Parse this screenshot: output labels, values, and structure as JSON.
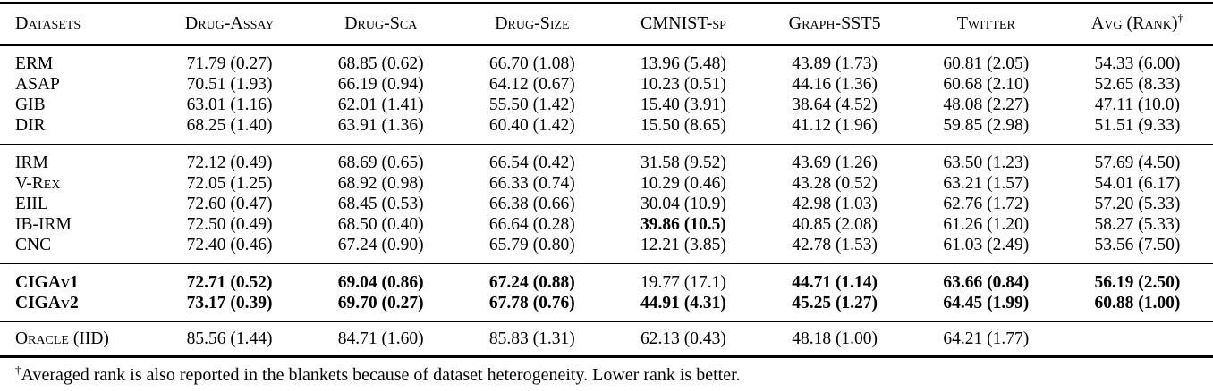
{
  "header": {
    "columns": [
      "Datasets",
      "Drug-Assay",
      "Drug-Sca",
      "Drug-Size",
      "CMNIST-sp",
      "Graph-SST5",
      "Twitter",
      "Avg (Rank)"
    ],
    "dagger": "†"
  },
  "groups": [
    {
      "rows": [
        {
          "label": "ERM",
          "bold": false,
          "cells": [
            {
              "text": "71.79 (0.27)",
              "bold": false
            },
            {
              "text": "68.85 (0.62)",
              "bold": false
            },
            {
              "text": "66.70 (1.08)",
              "bold": false
            },
            {
              "text": "13.96 (5.48)",
              "bold": false
            },
            {
              "text": "43.89 (1.73)",
              "bold": false
            },
            {
              "text": "60.81 (2.05)",
              "bold": false
            },
            {
              "text": "54.33 (6.00)",
              "bold": false
            }
          ]
        },
        {
          "label": "ASAP",
          "bold": false,
          "cells": [
            {
              "text": "70.51 (1.93)",
              "bold": false
            },
            {
              "text": "66.19 (0.94)",
              "bold": false
            },
            {
              "text": "64.12 (0.67)",
              "bold": false
            },
            {
              "text": "10.23 (0.51)",
              "bold": false
            },
            {
              "text": "44.16 (1.36)",
              "bold": false
            },
            {
              "text": "60.68 (2.10)",
              "bold": false
            },
            {
              "text": "52.65 (8.33)",
              "bold": false
            }
          ]
        },
        {
          "label": "GIB",
          "bold": false,
          "cells": [
            {
              "text": "63.01 (1.16)",
              "bold": false
            },
            {
              "text": "62.01 (1.41)",
              "bold": false
            },
            {
              "text": "55.50 (1.42)",
              "bold": false
            },
            {
              "text": "15.40 (3.91)",
              "bold": false
            },
            {
              "text": "38.64 (4.52)",
              "bold": false
            },
            {
              "text": "48.08 (2.27)",
              "bold": false
            },
            {
              "text": "47.11 (10.0)",
              "bold": false
            }
          ]
        },
        {
          "label": "DIR",
          "bold": false,
          "cells": [
            {
              "text": "68.25 (1.40)",
              "bold": false
            },
            {
              "text": "63.91 (1.36)",
              "bold": false
            },
            {
              "text": "60.40 (1.42)",
              "bold": false
            },
            {
              "text": "15.50 (8.65)",
              "bold": false
            },
            {
              "text": "41.12 (1.96)",
              "bold": false
            },
            {
              "text": "59.85 (2.98)",
              "bold": false
            },
            {
              "text": "51.51 (9.33)",
              "bold": false
            }
          ]
        }
      ]
    },
    {
      "rows": [
        {
          "label": "IRM",
          "bold": false,
          "cells": [
            {
              "text": "72.12 (0.49)",
              "bold": false
            },
            {
              "text": "68.69 (0.65)",
              "bold": false
            },
            {
              "text": "66.54 (0.42)",
              "bold": false
            },
            {
              "text": "31.58 (9.52)",
              "bold": false
            },
            {
              "text": "43.69 (1.26)",
              "bold": false
            },
            {
              "text": "63.50 (1.23)",
              "bold": false
            },
            {
              "text": "57.69 (4.50)",
              "bold": false
            }
          ]
        },
        {
          "label": "V-Rex",
          "bold": false,
          "cells": [
            {
              "text": "72.05 (1.25)",
              "bold": false
            },
            {
              "text": "68.92 (0.98)",
              "bold": false
            },
            {
              "text": "66.33 (0.74)",
              "bold": false
            },
            {
              "text": "10.29 (0.46)",
              "bold": false
            },
            {
              "text": "43.28 (0.52)",
              "bold": false
            },
            {
              "text": "63.21 (1.57)",
              "bold": false
            },
            {
              "text": "54.01 (6.17)",
              "bold": false
            }
          ]
        },
        {
          "label": "EIIL",
          "bold": false,
          "cells": [
            {
              "text": "72.60 (0.47)",
              "bold": false
            },
            {
              "text": "68.45 (0.53)",
              "bold": false
            },
            {
              "text": "66.38 (0.66)",
              "bold": false
            },
            {
              "text": "30.04 (10.9)",
              "bold": false
            },
            {
              "text": "42.98 (1.03)",
              "bold": false
            },
            {
              "text": "62.76 (1.72)",
              "bold": false
            },
            {
              "text": "57.20 (5.33)",
              "bold": false
            }
          ]
        },
        {
          "label": "IB-IRM",
          "bold": false,
          "cells": [
            {
              "text": "72.50 (0.49)",
              "bold": false
            },
            {
              "text": "68.50 (0.40)",
              "bold": false
            },
            {
              "text": "66.64 (0.28)",
              "bold": false
            },
            {
              "text": "39.86 (10.5)",
              "bold": true
            },
            {
              "text": "40.85 (2.08)",
              "bold": false
            },
            {
              "text": "61.26 (1.20)",
              "bold": false
            },
            {
              "text": "58.27 (5.33)",
              "bold": false
            }
          ]
        },
        {
          "label": "CNC",
          "bold": false,
          "cells": [
            {
              "text": "72.40 (0.46)",
              "bold": false
            },
            {
              "text": "67.24 (0.90)",
              "bold": false
            },
            {
              "text": "65.79 (0.80)",
              "bold": false
            },
            {
              "text": "12.21 (3.85)",
              "bold": false
            },
            {
              "text": "42.78 (1.53)",
              "bold": false
            },
            {
              "text": "61.03 (2.49)",
              "bold": false
            },
            {
              "text": "53.56 (7.50)",
              "bold": false
            }
          ]
        }
      ]
    },
    {
      "rows": [
        {
          "label": "CIGAv1",
          "bold": true,
          "cells": [
            {
              "text": "72.71 (0.52)",
              "bold": true
            },
            {
              "text": "69.04 (0.86)",
              "bold": true
            },
            {
              "text": "67.24 (0.88)",
              "bold": true
            },
            {
              "text": "19.77 (17.1)",
              "bold": false
            },
            {
              "text": "44.71 (1.14)",
              "bold": true
            },
            {
              "text": "63.66 (0.84)",
              "bold": true
            },
            {
              "text": "56.19 (2.50)",
              "bold": true
            }
          ]
        },
        {
          "label": "CIGAv2",
          "bold": true,
          "cells": [
            {
              "text": "73.17 (0.39)",
              "bold": true
            },
            {
              "text": "69.70 (0.27)",
              "bold": true
            },
            {
              "text": "67.78 (0.76)",
              "bold": true
            },
            {
              "text": "44.91 (4.31)",
              "bold": true
            },
            {
              "text": "45.25 (1.27)",
              "bold": true
            },
            {
              "text": "64.45 (1.99)",
              "bold": true
            },
            {
              "text": "60.88 (1.00)",
              "bold": true
            }
          ]
        }
      ]
    },
    {
      "rows": [
        {
          "label": "Oracle (IID)",
          "bold": false,
          "cells": [
            {
              "text": "85.56 (1.44)",
              "bold": false
            },
            {
              "text": "84.71 (1.60)",
              "bold": false
            },
            {
              "text": "85.83 (1.31)",
              "bold": false
            },
            {
              "text": "62.13 (0.43)",
              "bold": false
            },
            {
              "text": "48.18 (1.00)",
              "bold": false
            },
            {
              "text": "64.21 (1.77)",
              "bold": false
            },
            {
              "text": "",
              "bold": false
            }
          ]
        }
      ]
    }
  ],
  "footnote": {
    "marker": "†",
    "text": "Averaged rank is also reported in the blankets because of dataset heterogeneity. Lower rank is better."
  }
}
